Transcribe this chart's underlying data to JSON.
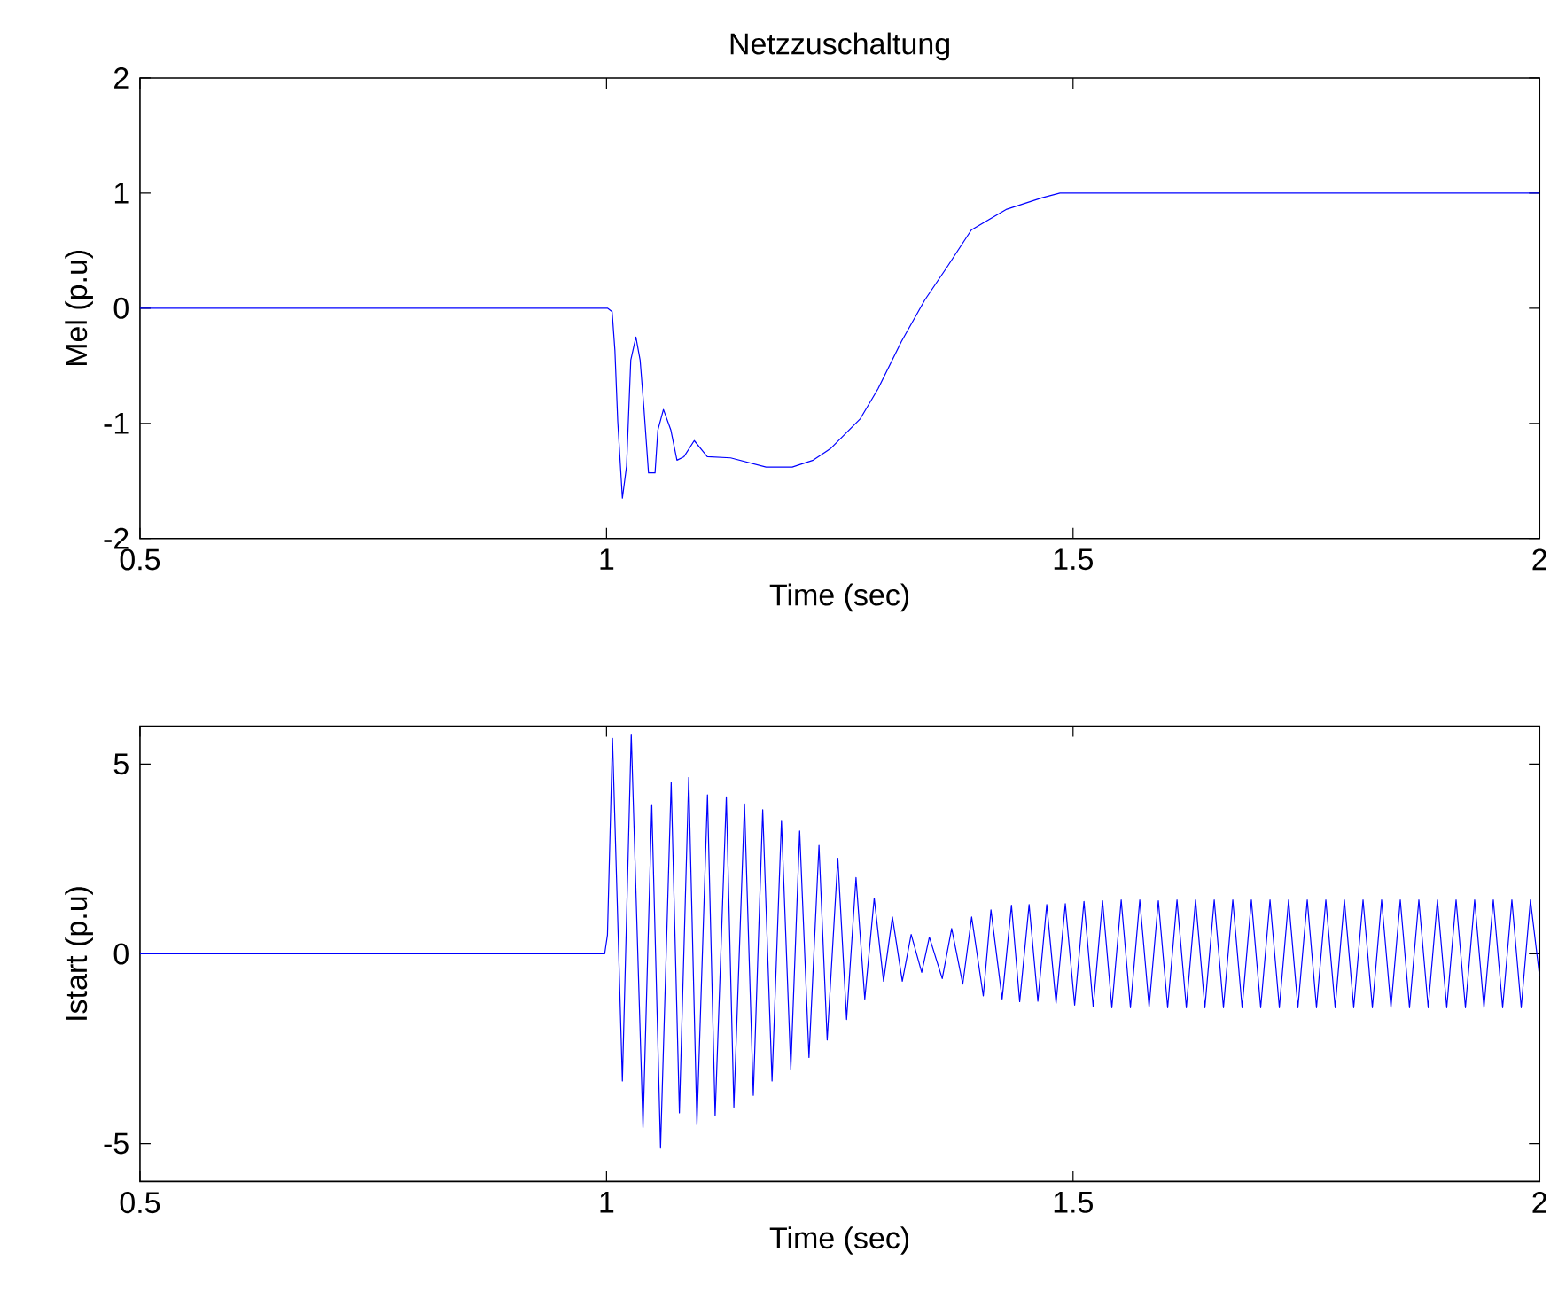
{
  "chart_data": [
    {
      "type": "line",
      "title": "Netzzuschaltung",
      "xlabel": "Time (sec)",
      "ylabel": "Mel (p.u)",
      "xlim": [
        0.5,
        2
      ],
      "xticks": [
        0.5,
        1,
        1.5,
        2
      ],
      "ylim": [
        -2,
        2
      ],
      "yticks": [
        -2,
        -1,
        0,
        1,
        2
      ],
      "grid": false,
      "marker": "none",
      "line_style": "solid",
      "series": [
        {
          "color": "#0000ff",
          "x": [
            0.5,
            1.001,
            1.006,
            1.009,
            1.012,
            1.017,
            1.0215,
            1.026,
            1.0315,
            1.036,
            1.04,
            1.045,
            1.052,
            1.055,
            1.061,
            1.069,
            1.0755,
            1.083,
            1.094,
            1.108,
            1.133,
            1.171,
            1.199,
            1.2215,
            1.24,
            1.272,
            1.291,
            1.316,
            1.341,
            1.366,
            1.391,
            1.429,
            1.467,
            1.486,
            2.0
          ],
          "values": [
            0,
            0,
            -0.03,
            -0.37,
            -0.98,
            -1.65,
            -1.37,
            -0.45,
            -0.25,
            -0.45,
            -0.86,
            -1.43,
            -1.43,
            -1.06,
            -0.88,
            -1.06,
            -1.32,
            -1.29,
            -1.15,
            -1.29,
            -1.3,
            -1.38,
            -1.38,
            -1.32,
            -1.22,
            -0.96,
            -0.7,
            -0.29,
            0.07,
            0.37,
            0.68,
            0.86,
            0.96,
            1.0,
            1.0
          ]
        }
      ]
    },
    {
      "type": "line",
      "xlabel": "Time (sec)",
      "ylabel": "Istart (p.u)",
      "xlim": [
        0.5,
        2
      ],
      "xticks": [
        0.5,
        1,
        1.5,
        2
      ],
      "ylim": [
        -6,
        6
      ],
      "yticks": [
        -5,
        0,
        5
      ],
      "grid": false,
      "marker": "none",
      "line_style": "solid",
      "series": [
        {
          "color": "#0000ff",
          "x": [
            0.5,
            0.998,
            1.001,
            1.0064,
            1.017,
            1.0265,
            1.0391,
            1.0485,
            1.0579,
            1.0693,
            1.0781,
            1.0881,
            1.0969,
            1.1082,
            1.1164,
            1.1284,
            1.1365,
            1.1479,
            1.1573,
            1.1674,
            1.1774,
            1.1875,
            1.1975,
            1.207,
            1.217,
            1.2277,
            1.2365,
            1.2479,
            1.2573,
            1.2674,
            1.2768,
            1.2869,
            1.2969,
            1.3064,
            1.317,
            1.3265,
            1.3378,
            1.346,
            1.3598,
            1.3699,
            1.3818,
            1.3913,
            1.4038,
            1.412,
            1.424,
            1.434,
            1.4428,
            1.4529,
            1.4623,
            1.4718,
            1.4818,
            1.4917,
            1.5017,
            1.5117,
            1.5216,
            1.5316,
            1.5416,
            1.5516,
            1.5615,
            1.5715,
            1.5815,
            1.5914,
            1.6014,
            1.6114,
            1.6214,
            1.6313,
            1.6413,
            1.6513,
            1.6612,
            1.6712,
            1.6812,
            1.6911,
            1.7011,
            1.7111,
            1.7211,
            1.731,
            1.741,
            1.751,
            1.7609,
            1.7709,
            1.7809,
            1.7908,
            1.8008,
            1.8108,
            1.8208,
            1.8307,
            1.8407,
            1.8507,
            1.8606,
            1.8706,
            1.8806,
            1.8905,
            1.9005,
            1.9105,
            1.9205,
            1.9304,
            1.9404,
            1.9504,
            1.9604,
            1.9703,
            1.9803,
            1.9902,
            2.0
          ],
          "values": [
            0,
            0,
            0.5,
            5.68,
            -3.35,
            5.79,
            -4.58,
            3.93,
            -5.12,
            4.52,
            -4.19,
            4.65,
            -4.5,
            4.19,
            -4.27,
            4.14,
            -4.04,
            3.95,
            -3.73,
            3.8,
            -3.35,
            3.52,
            -3.04,
            3.24,
            -2.73,
            2.86,
            -2.27,
            2.52,
            -1.73,
            2.01,
            -1.19,
            1.47,
            -0.72,
            0.97,
            -0.72,
            0.51,
            -0.49,
            0.44,
            -0.65,
            0.67,
            -0.8,
            0.97,
            -1.11,
            1.16,
            -1.19,
            1.28,
            -1.26,
            1.3,
            -1.25,
            1.3,
            -1.3,
            1.32,
            -1.35,
            1.38,
            -1.4,
            1.4,
            -1.42,
            1.42,
            -1.42,
            1.42,
            -1.4,
            1.4,
            -1.42,
            1.42,
            -1.42,
            1.42,
            -1.42,
            1.42,
            -1.42,
            1.42,
            -1.42,
            1.42,
            -1.42,
            1.42,
            -1.42,
            1.42,
            -1.42,
            1.42,
            -1.42,
            1.42,
            -1.42,
            1.42,
            -1.42,
            1.42,
            -1.42,
            1.42,
            -1.42,
            1.42,
            -1.42,
            1.42,
            -1.42,
            1.42,
            -1.42,
            1.42,
            -1.42,
            1.42,
            -1.42,
            1.42,
            -1.42,
            1.42,
            -1.42,
            1.42,
            -0.6
          ]
        }
      ]
    }
  ]
}
